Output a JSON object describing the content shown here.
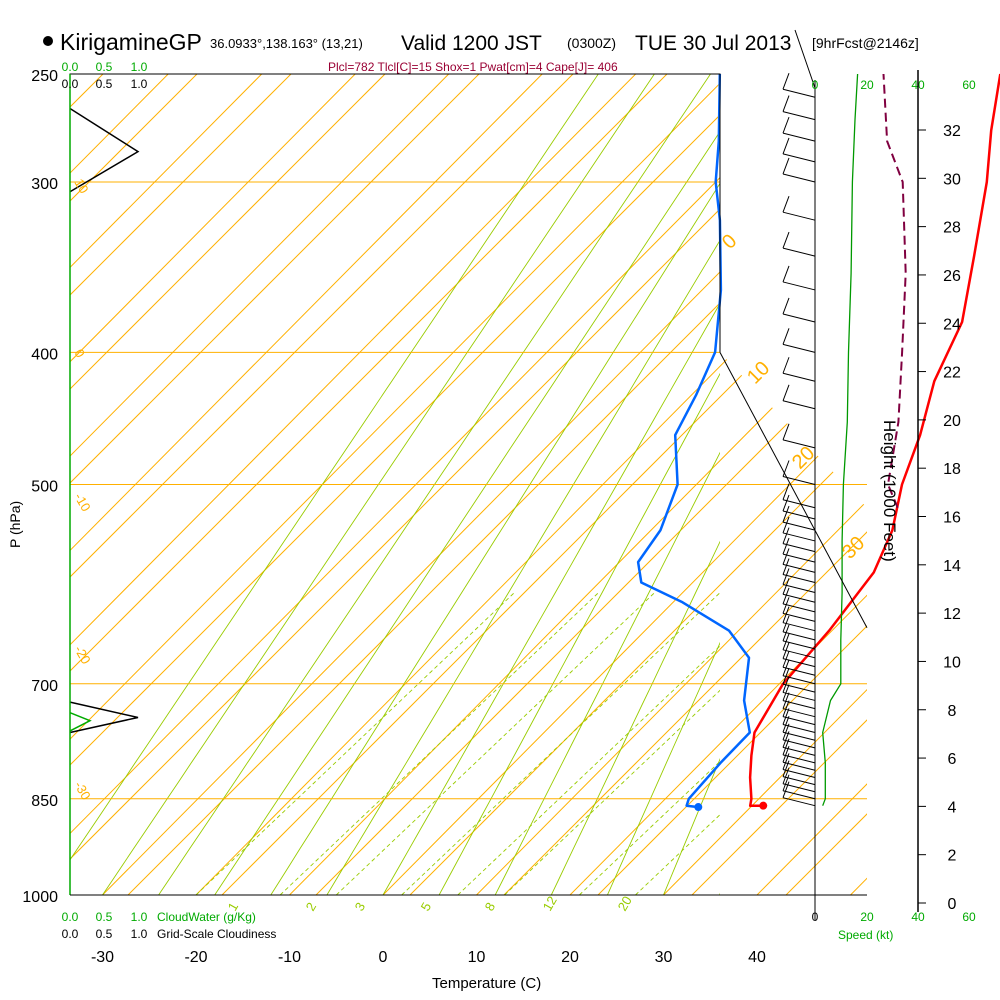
{
  "header": {
    "site": "KirigamineGP",
    "location": "36.0933°,138.163° (13,21)",
    "valid_main": "Valid 1200 JST",
    "valid_zulu": "(0300Z)",
    "valid_date": "TUE 30 Jul 2013",
    "forecast": "[9hrFcst@2146z]",
    "indices": "Plcl=782 Tlcl[C]=15 Shox=1 Pwat[cm]=4 Cape[J]= 406"
  },
  "chart_data": {
    "type": "line",
    "title": "KirigamineGP Valid 1200 JST (0300Z) TUE 30 Jul 2013",
    "xlabel": "Temperature (C)",
    "ylabel": "P (hPa)",
    "right_ylabel": "Height (1000 Feet)",
    "xlim": [
      -35,
      45
    ],
    "plim": [
      1000,
      250
    ],
    "pressure_ticks": [
      250,
      300,
      400,
      500,
      700,
      850,
      1000
    ],
    "temperature_ticks": [
      -30,
      -20,
      -10,
      0,
      10,
      20,
      30,
      40
    ],
    "height_ticks": [
      0,
      2,
      4,
      6,
      8,
      10,
      12,
      14,
      16,
      18,
      20,
      22,
      24,
      26,
      28,
      30,
      32
    ],
    "height_labels": [
      "0",
      "2",
      "4",
      "6",
      "8",
      "10",
      "12",
      "14",
      "16",
      "18",
      "20",
      "22",
      "24",
      "26",
      "28",
      "30",
      "32"
    ],
    "skew_deg_per_pixel_up": 0.106,
    "dry_adiabat_labels": [
      "0",
      "10",
      "20",
      "30"
    ],
    "isotherm_labels": [
      "10",
      "0",
      "-10",
      "-20",
      "-30"
    ],
    "mixing_ratio_labels": [
      "1",
      "2",
      "3",
      "5",
      "8",
      "12",
      "20"
    ],
    "series": [
      {
        "name": "Temperature",
        "color": "#ff0000",
        "points": [
          [
            860,
            31.2
          ],
          [
            860,
            29.8
          ],
          [
            850,
            29.2
          ],
          [
            820,
            26.8
          ],
          [
            790,
            24.6
          ],
          [
            760,
            22.5
          ],
          [
            700,
            20.4
          ],
          [
            640,
            19.7
          ],
          [
            580,
            18.3
          ],
          [
            540,
            15.8
          ],
          [
            500,
            12.0
          ],
          [
            460,
            8.7
          ],
          [
            420,
            4.5
          ],
          [
            380,
            1.2
          ],
          [
            340,
            -4.5
          ],
          [
            300,
            -11.0
          ],
          [
            275,
            -16.0
          ],
          [
            250,
            -21.0
          ]
        ]
      },
      {
        "name": "Dewpoint",
        "color": "#0066ff",
        "points": [
          [
            862,
            24.4
          ],
          [
            860,
            23.0
          ],
          [
            850,
            22.5
          ],
          [
            800,
            22.1
          ],
          [
            760,
            22.0
          ],
          [
            720,
            18.0
          ],
          [
            670,
            14.0
          ],
          [
            640,
            9.0
          ],
          [
            610,
            1.0
          ],
          [
            590,
            -5.5
          ],
          [
            570,
            -8.0
          ],
          [
            540,
            -9.0
          ],
          [
            500,
            -12.0
          ],
          [
            460,
            -17.5
          ],
          [
            430,
            -19.5
          ],
          [
            400,
            -22.0
          ],
          [
            360,
            -28.0
          ],
          [
            320,
            -35.5
          ],
          [
            300,
            -40.0
          ],
          [
            280,
            -44.0
          ],
          [
            250,
            -51.0
          ]
        ]
      },
      {
        "name": "Parcel",
        "color": "#800040",
        "dashed": true,
        "points": [
          [
            520,
            14.0
          ],
          [
            500,
            10.5
          ],
          [
            450,
            5.0
          ],
          [
            400,
            -2.0
          ],
          [
            350,
            -10.0
          ],
          [
            300,
            -20.0
          ],
          [
            280,
            -26.0
          ],
          [
            250,
            -33.5
          ]
        ]
      }
    ],
    "cloud_water_profile": {
      "name": "CloudWater (g/Kg)",
      "points": [
        [
          305,
          0
        ],
        [
          285,
          0.45
        ],
        [
          265,
          0
        ],
        [
          760,
          0
        ],
        [
          740,
          0.13
        ],
        [
          722,
          0
        ],
        [
          770,
          0
        ],
        [
          750,
          0.1
        ],
        [
          730,
          0
        ]
      ]
    },
    "wind_barbs_pressure": [
      860,
      850,
      840,
      830,
      820,
      810,
      800,
      790,
      780,
      770,
      760,
      750,
      740,
      730,
      720,
      710,
      700,
      690,
      680,
      670,
      660,
      650,
      640,
      630,
      620,
      610,
      600,
      590,
      580,
      570,
      560,
      550,
      540,
      530,
      520,
      500,
      470,
      440,
      420,
      400,
      380,
      360,
      340,
      320,
      300,
      290,
      280,
      270,
      260
    ],
    "wind_speed_profile": {
      "name": "Speed (kt)",
      "color": "#009900",
      "points": [
        [
          860,
          3
        ],
        [
          850,
          4
        ],
        [
          800,
          4
        ],
        [
          760,
          3
        ],
        [
          720,
          6
        ],
        [
          700,
          10
        ],
        [
          650,
          10
        ],
        [
          600,
          10.5
        ],
        [
          550,
          10.5
        ],
        [
          500,
          11
        ],
        [
          450,
          12.5
        ],
        [
          400,
          13
        ],
        [
          350,
          14
        ],
        [
          300,
          14.5
        ],
        [
          270,
          15.5
        ],
        [
          250,
          16.5
        ]
      ]
    },
    "axes_bottom": {
      "cloud_water_ticks": [
        "0.0",
        "0.5",
        "1.0"
      ],
      "cloud_water_label": "CloudWater (g/Kg)",
      "cloudiness_ticks": [
        "0.0",
        "0.5",
        "1.0"
      ],
      "cloudiness_label": "Grid-Scale Cloudiness",
      "speed_ticks": [
        "0",
        "20",
        "40",
        "60"
      ],
      "speed_label": "Speed (kt)"
    },
    "axes_top": {
      "cloud_water_ticks": [
        "0.0",
        "0.5",
        "1.0"
      ],
      "cloudiness_ticks": [
        "0.0",
        "0.5",
        "1.0"
      ],
      "speed_ticks": [
        "0",
        "20",
        "40",
        "60"
      ]
    },
    "colors": {
      "isobar": "#ffb000",
      "isotherm": "#ffb000",
      "dry_adiabat": "#ffb000",
      "moist_adiabat": "#99cc00",
      "mixing_ratio": "#99cc00",
      "cloud_water": "#00aa00",
      "axis_green": "#00aa00",
      "indices_text": "#990033"
    }
  }
}
